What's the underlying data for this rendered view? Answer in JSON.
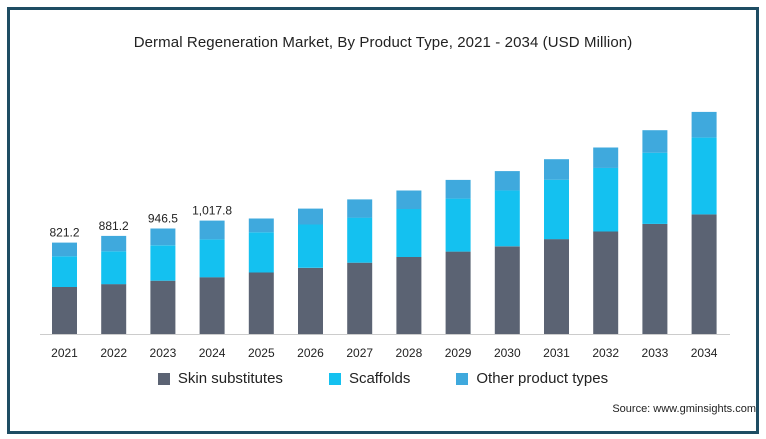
{
  "chart_data": {
    "type": "bar",
    "stacked": true,
    "title": "Dermal Regeneration Market, By Product Type, 2021 - 2034 (USD Million)",
    "categories": [
      "2021",
      "2022",
      "2023",
      "2024",
      "2025",
      "2026",
      "2027",
      "2028",
      "2029",
      "2030",
      "2031",
      "2032",
      "2033",
      "2034"
    ],
    "series": [
      {
        "name": "Skin substitutes",
        "color": "#5b6373",
        "values": [
          422,
          448,
          479,
          510,
          552,
          594,
          640,
          691,
          740,
          787,
          852,
          920,
          989,
          1074
        ]
      },
      {
        "name": "Scaffolds",
        "color": "#14c1f0",
        "values": [
          276,
          295,
          317,
          339,
          361,
          389,
          405,
          432,
          476,
          503,
          534,
          572,
          639,
          690
        ]
      },
      {
        "name": "Other product types",
        "color": "#3fa9dd",
        "values": [
          123,
          138,
          151,
          169,
          124,
          143,
          164,
          166,
          168,
          173,
          184,
          183,
          202,
          230
        ]
      }
    ],
    "data_labels": [
      "821.2",
      "881.2",
      "946.5",
      "1,017.8",
      "",
      "",
      "",
      "",
      "",
      "",
      "",
      "",
      "",
      ""
    ],
    "ylim": [
      0,
      2200
    ],
    "grid": false,
    "legend_position": "bottom"
  },
  "legend": {
    "items": [
      {
        "label": "Skin substitutes",
        "color": "#5b6373"
      },
      {
        "label": "Scaffolds",
        "color": "#14c1f0"
      },
      {
        "label": "Other product types",
        "color": "#3fa9dd"
      }
    ]
  },
  "source": "Source: www.gminsights.com"
}
